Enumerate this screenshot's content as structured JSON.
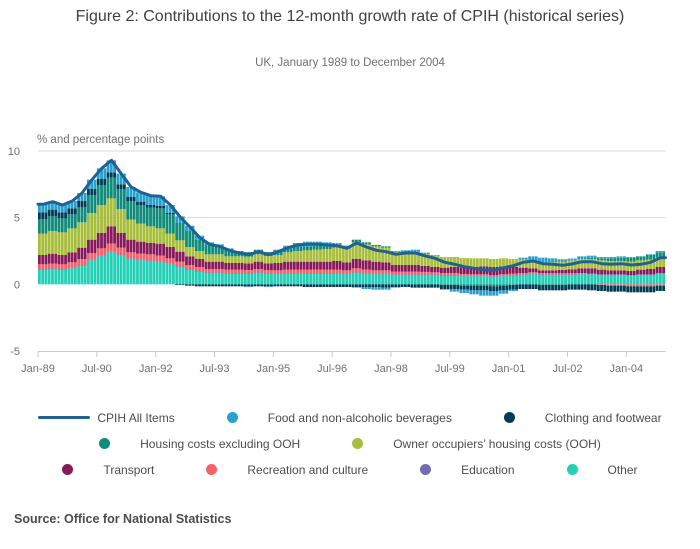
{
  "header": {
    "title": "Figure 2: Contributions to the 12-month growth rate of CPIH (historical series)",
    "subtitle": "UK, January 1989 to December 2004"
  },
  "axis_unit_label": "% and percentage points",
  "source": "Source: Office for National Statistics",
  "colors": {
    "line_blue": "#206095",
    "food_light_blue": "#27A0CC",
    "clothing_navy": "#003C57",
    "housing_teal": "#118C7B",
    "ooh_green": "#A8BD3A",
    "transport_magenta": "#871A5B",
    "recreation_salmon": "#F66068",
    "education_purple": "#746CB1",
    "other_turquoise": "#22D0B6",
    "gridline": "#d9d9d9",
    "axis": "#c3ccd6",
    "tick_text": "#707071"
  },
  "legend": {
    "rows": [
      [
        {
          "label": "CPIH All Items",
          "swatch": "line",
          "color": "#206095"
        },
        {
          "label": "Food and non-alcoholic beverages",
          "swatch": "dot",
          "color": "#27A0CC"
        },
        {
          "label": "Clothing and footwear",
          "swatch": "dot",
          "color": "#003C57"
        }
      ],
      [
        {
          "label": "Housing costs excluding OOH",
          "swatch": "dot",
          "color": "#118C7B"
        },
        {
          "label": "Owner occupiers’ housing costs (OOH)",
          "swatch": "dot",
          "color": "#A8BD3A"
        }
      ],
      [
        {
          "label": "Transport",
          "swatch": "dot",
          "color": "#871A5B"
        },
        {
          "label": "Recreation and culture",
          "swatch": "dot",
          "color": "#F66068"
        },
        {
          "label": "Education",
          "swatch": "dot",
          "color": "#746CB1"
        },
        {
          "label": "Other",
          "swatch": "dot",
          "color": "#22D0B6"
        }
      ]
    ]
  },
  "chart_data": {
    "type": "bar",
    "subtype": "stacked-bar-with-line",
    "title": "Figure 2: Contributions to the 12-month growth rate of CPIH (historical series)",
    "subtitle": "UK, January 1989 to December 2004",
    "ylabel": "% and percentage points",
    "xlabel": "",
    "ylim": [
      -5,
      10
    ],
    "yticks": [
      10,
      5,
      0,
      -5
    ],
    "grid_values": [
      10,
      5
    ],
    "legend_position": "bottom",
    "x_start": "Jan-89",
    "x_end": "Dec-04",
    "months_total": 192,
    "months_per_sample": 3,
    "x_tick_labels": [
      "Jan-89",
      "Jul-90",
      "Jan-92",
      "Jul-93",
      "Jan-95",
      "Jul-96",
      "Jan-98",
      "Jul-99",
      "Jan-01",
      "Jul-02",
      "Jan-04"
    ],
    "x_tick_months": [
      0,
      18,
      36,
      54,
      72,
      90,
      108,
      126,
      144,
      162,
      180
    ],
    "categories": [
      "Jan-89",
      "Apr-89",
      "Jul-89",
      "Oct-89",
      "Jan-90",
      "Apr-90",
      "Jul-90",
      "Oct-90",
      "Jan-91",
      "Apr-91",
      "Jul-91",
      "Oct-91",
      "Jan-92",
      "Apr-92",
      "Jul-92",
      "Oct-92",
      "Jan-93",
      "Apr-93",
      "Jul-93",
      "Oct-93",
      "Jan-94",
      "Apr-94",
      "Jul-94",
      "Oct-94",
      "Jan-95",
      "Apr-95",
      "Jul-95",
      "Oct-95",
      "Jan-96",
      "Apr-96",
      "Jul-96",
      "Oct-96",
      "Jan-97",
      "Apr-97",
      "Jul-97",
      "Oct-97",
      "Jan-98",
      "Apr-98",
      "Jul-98",
      "Oct-98",
      "Jan-99",
      "Apr-99",
      "Jul-99",
      "Oct-99",
      "Jan-00",
      "Apr-00",
      "Jul-00",
      "Oct-00",
      "Jan-01",
      "Apr-01",
      "Jul-01",
      "Oct-01",
      "Jan-02",
      "Apr-02",
      "Jul-02",
      "Oct-02",
      "Jan-03",
      "Apr-03",
      "Jul-03",
      "Oct-03",
      "Jan-04",
      "Apr-04",
      "Jul-04",
      "Oct-04"
    ],
    "series": [
      {
        "name": "Other",
        "color": "#22D0B6",
        "values": [
          1.1,
          1.15,
          1.1,
          1.2,
          1.4,
          1.8,
          2.1,
          2.4,
          2.2,
          1.9,
          1.8,
          1.75,
          1.65,
          1.5,
          1.3,
          1.1,
          0.95,
          0.85,
          0.85,
          0.8,
          0.8,
          0.8,
          0.85,
          0.8,
          0.75,
          0.8,
          0.8,
          0.8,
          0.8,
          0.8,
          0.8,
          0.75,
          0.85,
          0.8,
          0.75,
          0.75,
          0.7,
          0.7,
          0.7,
          0.7,
          0.7,
          0.65,
          0.65,
          0.6,
          0.6,
          0.6,
          0.55,
          0.6,
          0.65,
          0.7,
          0.75,
          0.7,
          0.7,
          0.7,
          0.7,
          0.75,
          0.75,
          0.7,
          0.7,
          0.7,
          0.65,
          0.7,
          0.7,
          0.8
        ]
      },
      {
        "name": "Education",
        "color": "#746CB1",
        "values": [
          0.05,
          0.05,
          0.05,
          0.05,
          0.05,
          0.05,
          0.05,
          0.05,
          0.05,
          0.05,
          0.05,
          0.05,
          0.05,
          0.05,
          0.05,
          0.05,
          0.05,
          0.05,
          0.05,
          0.05,
          0.05,
          0.05,
          0.05,
          0.05,
          0.05,
          0.05,
          0.05,
          0.05,
          0.05,
          0.05,
          0.05,
          0.05,
          0.05,
          0.05,
          0.05,
          0.05,
          0.05,
          0.05,
          0.05,
          0.05,
          0.05,
          0.05,
          0.05,
          0.05,
          0.05,
          0.05,
          0.05,
          0.05,
          0.05,
          0.05,
          0.05,
          0.05,
          0.05,
          0.05,
          0.05,
          0.05,
          0.05,
          0.05,
          0.05,
          0.05,
          0.05,
          0.05,
          0.05,
          0.05
        ]
      },
      {
        "name": "Recreation and culture",
        "color": "#F66068",
        "values": [
          0.35,
          0.35,
          0.35,
          0.4,
          0.45,
          0.5,
          0.55,
          0.6,
          0.5,
          0.45,
          0.45,
          0.45,
          0.45,
          0.4,
          0.35,
          0.3,
          0.3,
          0.25,
          0.25,
          0.25,
          0.25,
          0.22,
          0.25,
          0.22,
          0.25,
          0.25,
          0.25,
          0.25,
          0.25,
          0.25,
          0.25,
          0.25,
          0.3,
          0.25,
          0.25,
          0.25,
          0.2,
          0.2,
          0.2,
          0.18,
          0.15,
          0.15,
          0.15,
          0.12,
          0.1,
          0.1,
          0.1,
          0.1,
          0.1,
          0.1,
          0.1,
          0.1,
          0.1,
          0.08,
          0.08,
          0.05,
          0.0,
          -0.05,
          -0.1,
          -0.1,
          -0.15,
          -0.15,
          -0.15,
          -0.1
        ]
      },
      {
        "name": "Transport",
        "color": "#871A5B",
        "values": [
          0.7,
          0.75,
          0.7,
          0.75,
          0.85,
          1.0,
          1.15,
          1.3,
          1.1,
          0.95,
          0.9,
          0.85,
          0.9,
          0.85,
          0.75,
          0.65,
          0.6,
          0.55,
          0.55,
          0.5,
          0.5,
          0.5,
          0.55,
          0.5,
          0.55,
          0.6,
          0.6,
          0.6,
          0.6,
          0.6,
          0.65,
          0.6,
          0.7,
          0.7,
          0.65,
          0.6,
          0.5,
          0.5,
          0.5,
          0.45,
          0.4,
          0.4,
          0.45,
          0.5,
          0.55,
          0.6,
          0.6,
          0.6,
          0.5,
          0.4,
          0.3,
          0.2,
          0.2,
          0.25,
          0.3,
          0.35,
          0.4,
          0.35,
          0.3,
          0.3,
          0.3,
          0.35,
          0.4,
          0.45
        ]
      },
      {
        "name": "Owner occupiers’ housing costs (OOH)",
        "color": "#A8BD3A",
        "values": [
          1.6,
          1.7,
          1.7,
          1.8,
          1.9,
          2.0,
          2.1,
          2.1,
          1.8,
          1.5,
          1.35,
          1.25,
          1.15,
          1.0,
          0.85,
          0.7,
          0.6,
          0.55,
          0.55,
          0.5,
          0.5,
          0.5,
          0.55,
          0.55,
          0.6,
          0.7,
          0.8,
          0.85,
          0.9,
          0.95,
          1.0,
          1.05,
          1.25,
          1.2,
          1.15,
          1.1,
          1.0,
          1.0,
          0.95,
          0.9,
          0.85,
          0.8,
          0.75,
          0.7,
          0.65,
          0.6,
          0.6,
          0.6,
          0.6,
          0.6,
          0.6,
          0.6,
          0.6,
          0.6,
          0.65,
          0.7,
          0.7,
          0.7,
          0.7,
          0.7,
          0.7,
          0.7,
          0.7,
          0.7
        ]
      },
      {
        "name": "Housing costs excluding OOH",
        "color": "#118C7B",
        "values": [
          1.1,
          1.1,
          1.05,
          1.05,
          1.15,
          1.35,
          1.5,
          1.55,
          1.5,
          1.4,
          1.4,
          1.4,
          1.5,
          1.45,
          1.3,
          1.2,
          0.85,
          0.7,
          0.6,
          0.5,
          0.4,
          0.35,
          0.35,
          0.3,
          0.3,
          0.3,
          0.3,
          0.3,
          0.3,
          0.25,
          0.25,
          0.2,
          0.2,
          0.15,
          0.1,
          0.1,
          0.05,
          0.05,
          0.05,
          0.0,
          0.0,
          -0.05,
          -0.05,
          -0.1,
          -0.1,
          -0.1,
          -0.15,
          -0.1,
          -0.05,
          0.0,
          0.0,
          -0.05,
          -0.05,
          -0.05,
          0.0,
          0.05,
          0.1,
          0.15,
          0.2,
          0.25,
          0.3,
          0.3,
          0.35,
          0.4
        ]
      },
      {
        "name": "Clothing and footwear",
        "color": "#003C57",
        "values": [
          0.5,
          0.5,
          0.45,
          0.45,
          0.45,
          0.45,
          0.45,
          0.4,
          0.35,
          0.3,
          0.25,
          0.2,
          0.2,
          0.1,
          -0.05,
          -0.1,
          -0.15,
          -0.15,
          -0.15,
          -0.15,
          -0.15,
          -0.15,
          -0.15,
          -0.15,
          -0.15,
          -0.15,
          -0.15,
          -0.2,
          -0.2,
          -0.2,
          -0.2,
          -0.2,
          -0.2,
          -0.2,
          -0.2,
          -0.25,
          -0.2,
          -0.2,
          -0.25,
          -0.25,
          -0.25,
          -0.3,
          -0.3,
          -0.3,
          -0.35,
          -0.35,
          -0.35,
          -0.35,
          -0.35,
          -0.35,
          -0.35,
          -0.4,
          -0.4,
          -0.4,
          -0.4,
          -0.4,
          -0.45,
          -0.45,
          -0.45,
          -0.45,
          -0.45,
          -0.45,
          -0.45,
          -0.4
        ]
      },
      {
        "name": "Food and non-alcoholic beverages",
        "color": "#27A0CC",
        "values": [
          0.6,
          0.6,
          0.55,
          0.55,
          0.6,
          0.7,
          0.8,
          0.9,
          0.8,
          0.75,
          0.7,
          0.7,
          0.7,
          0.6,
          0.5,
          0.4,
          0.3,
          0.2,
          0.15,
          0.1,
          0.0,
          -0.05,
          0.0,
          -0.05,
          0.1,
          0.2,
          0.3,
          0.35,
          0.3,
          0.25,
          0.1,
          0.0,
          -0.05,
          -0.15,
          -0.2,
          -0.15,
          -0.05,
          0.05,
          0.15,
          0.1,
          0.05,
          -0.05,
          -0.2,
          -0.25,
          -0.3,
          -0.4,
          -0.35,
          -0.25,
          -0.1,
          0.15,
          0.3,
          0.35,
          0.3,
          0.2,
          0.15,
          0.15,
          0.15,
          0.1,
          0.1,
          0.1,
          0.05,
          0.0,
          0.05,
          0.1
        ]
      }
    ],
    "line": {
      "name": "CPIH All Items",
      "color": "#206095",
      "values": [
        6.0,
        6.2,
        5.95,
        6.25,
        6.85,
        7.85,
        8.7,
        9.3,
        8.3,
        7.3,
        6.9,
        6.65,
        6.6,
        5.95,
        5.05,
        4.3,
        3.5,
        3.0,
        2.85,
        2.55,
        2.35,
        2.22,
        2.45,
        2.22,
        2.45,
        2.75,
        2.95,
        3.0,
        3.0,
        2.95,
        2.9,
        2.7,
        3.1,
        2.8,
        2.55,
        2.45,
        2.25,
        2.35,
        2.35,
        2.13,
        1.95,
        1.65,
        1.5,
        1.32,
        1.2,
        1.1,
        1.05,
        1.25,
        1.4,
        1.65,
        1.75,
        1.55,
        1.5,
        1.43,
        1.53,
        1.7,
        1.7,
        1.55,
        1.5,
        1.55,
        1.45,
        1.5,
        1.65,
        2.0
      ]
    }
  }
}
